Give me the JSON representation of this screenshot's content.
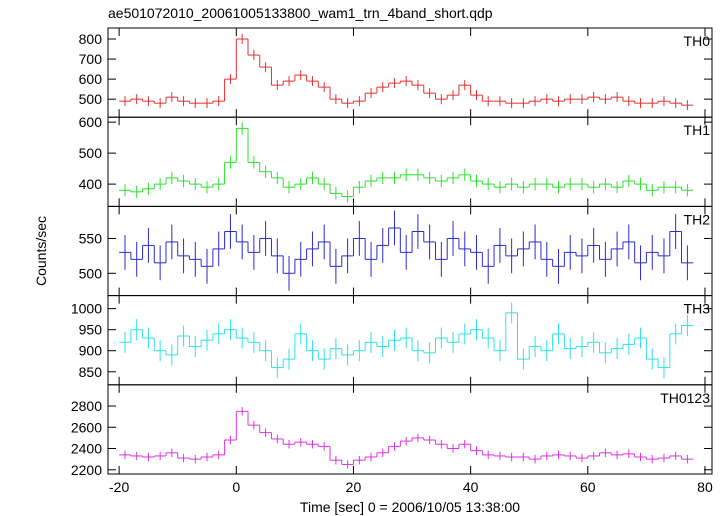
{
  "chart_data": {
    "type": "line",
    "title": "ae501072010_20061005133800_wam1_trn_4band_short.qdp",
    "y_label": "Counts/sec",
    "x_label": "Time [sec] 0 = 2006/10/05 13:38:00",
    "xlim": [
      -21.9,
      81.2
    ],
    "xticks": [
      -20,
      0,
      20,
      40,
      60,
      80
    ],
    "x": [
      -19,
      -17,
      -15,
      -13,
      -11,
      -9,
      -7,
      -5,
      -3,
      -1,
      1,
      3,
      5,
      7,
      9,
      11,
      13,
      15,
      17,
      19,
      21,
      23,
      25,
      27,
      29,
      31,
      33,
      35,
      37,
      39,
      41,
      43,
      45,
      47,
      49,
      51,
      53,
      55,
      57,
      59,
      61,
      63,
      65,
      67,
      69,
      71,
      73,
      75,
      77
    ],
    "series": [
      {
        "name": "TH0",
        "color": "#e33232",
        "error": 25,
        "ylim": [
          410,
          855
        ],
        "yticks": [
          500,
          600,
          700,
          800
        ],
        "values": [
          490,
          500,
          490,
          480,
          510,
          490,
          480,
          480,
          490,
          600,
          800,
          720,
          660,
          570,
          590,
          620,
          590,
          560,
          500,
          480,
          490,
          530,
          560,
          580,
          590,
          570,
          530,
          500,
          520,
          570,
          520,
          490,
          490,
          480,
          480,
          490,
          500,
          490,
          500,
          500,
          510,
          500,
          510,
          490,
          480,
          480,
          490,
          480,
          470
        ]
      },
      {
        "name": "TH1",
        "color": "#2fe02f",
        "error": 20,
        "ylim": [
          328,
          616
        ],
        "yticks": [
          400,
          500,
          600
        ],
        "values": [
          380,
          375,
          385,
          400,
          420,
          410,
          400,
          390,
          400,
          470,
          580,
          470,
          440,
          420,
          390,
          400,
          420,
          400,
          370,
          360,
          390,
          410,
          420,
          420,
          430,
          430,
          420,
          410,
          420,
          430,
          410,
          400,
          390,
          400,
          390,
          400,
          400,
          390,
          400,
          400,
          390,
          400,
          390,
          410,
          400,
          380,
          390,
          390,
          380
        ]
      },
      {
        "name": "TH2",
        "color": "#2b2bd0",
        "error": 25,
        "ylim": [
          468,
          596
        ],
        "yticks": [
          500,
          550
        ],
        "values": [
          530,
          520,
          540,
          515,
          545,
          525,
          520,
          510,
          535,
          560,
          545,
          530,
          550,
          525,
          500,
          520,
          535,
          545,
          510,
          525,
          550,
          520,
          540,
          565,
          530,
          560,
          545,
          520,
          550,
          535,
          530,
          510,
          540,
          525,
          535,
          545,
          520,
          510,
          530,
          525,
          540,
          520,
          535,
          545,
          515,
          530,
          525,
          560,
          515
        ]
      },
      {
        "name": "TH3",
        "color": "#2fe3e3",
        "error": 25,
        "ylim": [
          819,
          1031
        ],
        "yticks": [
          850,
          900,
          950,
          1000
        ],
        "values": [
          920,
          950,
          930,
          900,
          890,
          935,
          910,
          925,
          940,
          950,
          930,
          920,
          900,
          860,
          880,
          940,
          900,
          880,
          905,
          890,
          900,
          920,
          910,
          925,
          930,
          900,
          895,
          930,
          920,
          940,
          950,
          930,
          900,
          990,
          880,
          910,
          900,
          940,
          905,
          910,
          920,
          895,
          905,
          915,
          930,
          880,
          860,
          940,
          960
        ]
      },
      {
        "name": "TH0123",
        "color": "#e032e0",
        "error": 40,
        "ylim": [
          2160,
          3000
        ],
        "yticks": [
          2200,
          2400,
          2600,
          2800
        ],
        "values": [
          2340,
          2330,
          2320,
          2330,
          2360,
          2310,
          2300,
          2320,
          2340,
          2480,
          2750,
          2620,
          2550,
          2490,
          2440,
          2460,
          2440,
          2420,
          2290,
          2250,
          2290,
          2320,
          2360,
          2420,
          2470,
          2500,
          2480,
          2440,
          2400,
          2440,
          2380,
          2340,
          2330,
          2320,
          2320,
          2300,
          2330,
          2340,
          2330,
          2310,
          2330,
          2360,
          2340,
          2350,
          2320,
          2300,
          2310,
          2330,
          2300
        ]
      }
    ]
  }
}
